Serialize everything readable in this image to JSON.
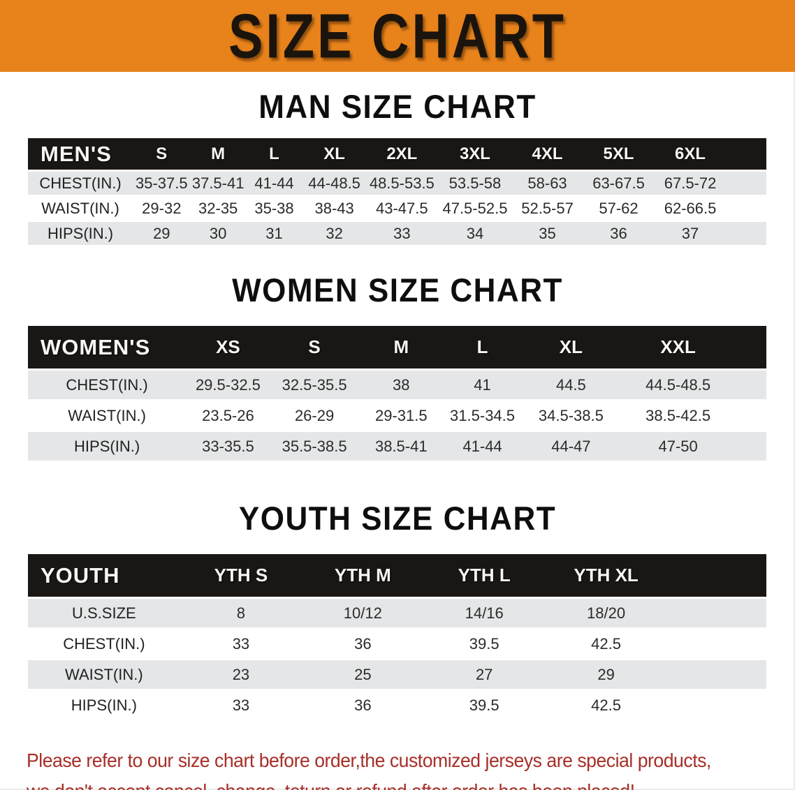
{
  "banner": {
    "title": "SIZE CHART",
    "bg_color": "#E8821B",
    "text_color": "#1B140D"
  },
  "sections": [
    {
      "key": "man",
      "heading": "MAN SIZE CHART",
      "table": {
        "corner": "MEN'S",
        "columns": [
          "S",
          "M",
          "L",
          "XL",
          "2XL",
          "3XL",
          "4XL",
          "5XL",
          "6XL"
        ],
        "rows": [
          {
            "label": "CHEST(IN.)",
            "values": [
              "35-37.5",
              "37.5-41",
              "41-44",
              "44-48.5",
              "48.5-53.5",
              "53.5-58",
              "58-63",
              "63-67.5",
              "67.5-72"
            ]
          },
          {
            "label": "WAIST(IN.)",
            "values": [
              "29-32",
              "32-35",
              "35-38",
              "38-43",
              "43-47.5",
              "47.5-52.5",
              "52.5-57",
              "57-62",
              "62-66.5"
            ]
          },
          {
            "label": "HIPS(IN.)",
            "values": [
              "29",
              "30",
              "31",
              "32",
              "33",
              "34",
              "35",
              "36",
              "37"
            ]
          }
        ]
      }
    },
    {
      "key": "women",
      "heading": "WOMEN SIZE CHART",
      "table": {
        "corner": "WOMEN'S",
        "columns": [
          "XS",
          "S",
          "M",
          "L",
          "XL",
          "XXL"
        ],
        "rows": [
          {
            "label": "CHEST(IN.)",
            "values": [
              "29.5-32.5",
              "32.5-35.5",
              "38",
              "41",
              "44.5",
              "44.5-48.5"
            ]
          },
          {
            "label": "WAIST(IN.)",
            "values": [
              "23.5-26",
              "26-29",
              "29-31.5",
              "31.5-34.5",
              "34.5-38.5",
              "38.5-42.5"
            ]
          },
          {
            "label": "HIPS(IN.)",
            "values": [
              "33-35.5",
              "35.5-38.5",
              "38.5-41",
              "41-44",
              "44-47",
              "47-50"
            ]
          }
        ]
      }
    },
    {
      "key": "youth",
      "heading": "YOUTH SIZE CHART",
      "table": {
        "corner": "YOUTH",
        "columns": [
          "YTH S",
          "YTH M",
          "YTH L",
          "YTH XL"
        ],
        "rows": [
          {
            "label": "U.S.SIZE",
            "values": [
              "8",
              "10/12",
              "14/16",
              "18/20"
            ]
          },
          {
            "label": "CHEST(IN.)",
            "values": [
              "33",
              "36",
              "39.5",
              "42.5"
            ]
          },
          {
            "label": "WAIST(IN.)",
            "values": [
              "23",
              "25",
              "27",
              "29"
            ]
          },
          {
            "label": "HIPS(IN.)",
            "values": [
              "33",
              "36",
              "39.5",
              "42.5"
            ]
          }
        ]
      }
    }
  ],
  "notice": {
    "lines": [
      "Please refer to our size chart before order,the customized jerseys are special products,",
      "we don't accept cancel, change, teturn or refund after order has been placed!"
    ],
    "color": "#A72F28"
  },
  "colors": {
    "header_bar": "#191614",
    "stripe_row": "#E4E6E7",
    "plain_row": "#FFFFFF"
  }
}
